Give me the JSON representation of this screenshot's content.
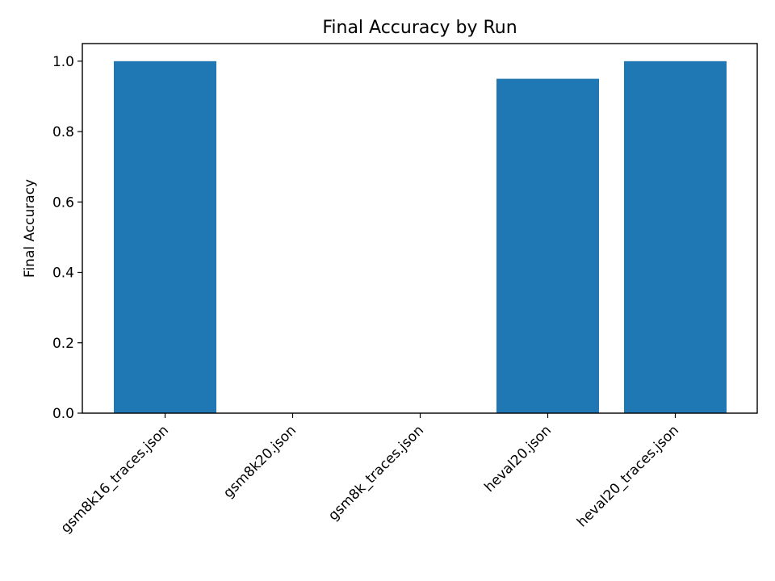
{
  "chart_data": {
    "type": "bar",
    "title": "Final Accuracy by Run",
    "xlabel": "",
    "ylabel": "Final Accuracy",
    "categories": [
      "gsm8k16_traces.json",
      "gsm8k20.json",
      "gsm8k_traces.json",
      "heval20.json",
      "heval20_traces.json"
    ],
    "values": [
      1.0,
      0.0,
      0.0,
      0.95,
      1.0
    ],
    "ylim": [
      0,
      1.05
    ],
    "yticks": [
      "0.0",
      "0.2",
      "0.4",
      "0.6",
      "0.8",
      "1.0"
    ],
    "bar_color": "#1f77b4",
    "grid": false,
    "legend": false
  }
}
